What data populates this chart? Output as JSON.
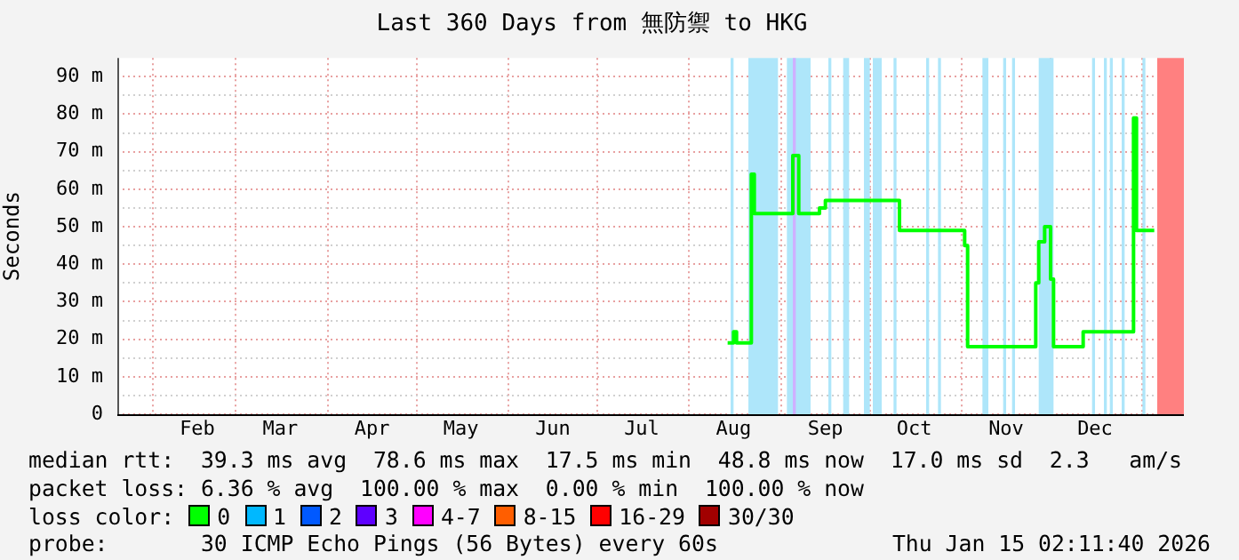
{
  "chart_data": {
    "type": "step",
    "title": "Last 360 Days from 無防禦 to HKG",
    "ylabel": "Seconds",
    "x": [
      "2025-08-14",
      "2025-08-16",
      "2025-08-17",
      "2025-08-22",
      "2025-08-23",
      "2025-09-05",
      "2025-09-07",
      "2025-09-14",
      "2025-09-16",
      "2025-10-11",
      "2025-11-02",
      "2025-11-03",
      "2025-11-26",
      "2025-11-27",
      "2025-11-29",
      "2025-12-01",
      "2025-12-02",
      "2025-12-12",
      "2025-12-29",
      "2025-12-30",
      "2026-01-05"
    ],
    "series": [
      {
        "color": "#00ff00",
        "values": [
          19,
          22,
          19,
          64,
          53.5,
          69,
          53.5,
          55,
          57,
          49,
          45,
          18,
          35,
          46,
          50,
          36,
          18,
          22,
          79,
          49,
          49
        ]
      }
    ],
    "xlim": [
      "2025-01-20",
      "2026-01-15"
    ],
    "xticks": [
      {
        "value": "2025-02-01",
        "label": null
      },
      {
        "value": "2025-02-16",
        "label": "Feb"
      },
      {
        "value": "2025-03-01",
        "label": null
      },
      {
        "value": "2025-03-16",
        "label": "Mar"
      },
      {
        "value": "2025-04-01",
        "label": null
      },
      {
        "value": "2025-04-16",
        "label": "Apr"
      },
      {
        "value": "2025-05-01",
        "label": null
      },
      {
        "value": "2025-05-16",
        "label": "May"
      },
      {
        "value": "2025-06-01",
        "label": null
      },
      {
        "value": "2025-06-16",
        "label": "Jun"
      },
      {
        "value": "2025-07-01",
        "label": null
      },
      {
        "value": "2025-07-16",
        "label": "Jul"
      },
      {
        "value": "2025-08-01",
        "label": null
      },
      {
        "value": "2025-08-16",
        "label": "Aug"
      },
      {
        "value": "2025-09-01",
        "label": null
      },
      {
        "value": "2025-09-16",
        "label": "Sep"
      },
      {
        "value": "2025-10-01",
        "label": null
      },
      {
        "value": "2025-10-16",
        "label": "Oct"
      },
      {
        "value": "2025-11-01",
        "label": null
      },
      {
        "value": "2025-11-16",
        "label": "Nov"
      },
      {
        "value": "2025-12-01",
        "label": null
      },
      {
        "value": "2025-12-16",
        "label": "Dec"
      },
      {
        "value": "2026-01-01",
        "label": null
      }
    ],
    "ylim": [
      0,
      95
    ],
    "yticks": [
      0,
      {
        "value": 5,
        "label": null
      },
      {
        "value": 10,
        "label": "10 m"
      },
      {
        "value": 15,
        "label": null
      },
      {
        "value": 20,
        "label": "20 m"
      },
      {
        "value": 25,
        "label": null
      },
      {
        "value": 30,
        "label": "30 m"
      },
      {
        "value": 35,
        "label": null
      },
      {
        "value": 40,
        "label": "40 m"
      },
      {
        "value": 45,
        "label": null
      },
      {
        "value": 50,
        "label": "50 m"
      },
      {
        "value": 55,
        "label": null
      },
      {
        "value": 60,
        "label": "60 m"
      },
      {
        "value": 65,
        "label": null
      },
      {
        "value": 70,
        "label": "70 m"
      },
      {
        "value": 75,
        "label": null
      },
      {
        "value": 80,
        "label": "80 m"
      },
      {
        "value": 85,
        "label": null
      },
      {
        "value": 90,
        "label": "90 m"
      }
    ],
    "grid": true,
    "marker": "none",
    "line_style": "solid",
    "bands": [
      {
        "axis": "x",
        "from": "2025-08-15",
        "to": "2025-08-16",
        "color": "#aee6fa"
      },
      {
        "axis": "x",
        "from": "2025-08-21",
        "to": "2025-08-31",
        "color": "#aee6fa"
      },
      {
        "axis": "x",
        "from": "2025-09-03",
        "to": "2025-09-11",
        "color": "#aee6fa"
      },
      {
        "axis": "x",
        "from": "2025-09-05",
        "to": "2025-09-06",
        "color": "#cfb0ff"
      },
      {
        "axis": "x",
        "from": "2025-09-17",
        "to": "2025-09-18",
        "color": "#aee6fa"
      },
      {
        "axis": "x",
        "from": "2025-09-22",
        "to": "2025-09-24",
        "color": "#aee6fa"
      },
      {
        "axis": "x",
        "from": "2025-09-29",
        "to": "2025-10-01",
        "color": "#aee6fa"
      },
      {
        "axis": "x",
        "from": "2025-10-02",
        "to": "2025-10-05",
        "color": "#aee6fa"
      },
      {
        "axis": "x",
        "from": "2025-10-09",
        "to": "2025-10-10",
        "color": "#aee6fa"
      },
      {
        "axis": "x",
        "from": "2025-10-20",
        "to": "2025-10-21",
        "color": "#aee6fa"
      },
      {
        "axis": "x",
        "from": "2025-10-24",
        "to": "2025-10-25",
        "color": "#aee6fa"
      },
      {
        "axis": "x",
        "from": "2025-11-08",
        "to": "2025-11-10",
        "color": "#aee6fa"
      },
      {
        "axis": "x",
        "from": "2025-11-15",
        "to": "2025-11-16",
        "color": "#aee6fa"
      },
      {
        "axis": "x",
        "from": "2025-11-18",
        "to": "2025-11-19",
        "color": "#aee6fa"
      },
      {
        "axis": "x",
        "from": "2025-11-27",
        "to": "2025-12-02",
        "color": "#aee6fa"
      },
      {
        "axis": "x",
        "from": "2025-12-15",
        "to": "2025-12-16",
        "color": "#aee6fa"
      },
      {
        "axis": "x",
        "from": "2025-12-19",
        "to": "2025-12-20",
        "color": "#aee6fa"
      },
      {
        "axis": "x",
        "from": "2025-12-21",
        "to": "2025-12-22",
        "color": "#aee6fa"
      },
      {
        "axis": "x",
        "from": "2025-12-25",
        "to": "2025-12-26",
        "color": "#aee6fa"
      },
      {
        "axis": "x",
        "from": "2026-01-01",
        "to": "2026-01-02",
        "color": "#aee6fa"
      },
      {
        "axis": "x",
        "from": "2026-01-06",
        "to": "2026-01-15",
        "color": "#ff8080"
      }
    ],
    "annotations": [
      "median rtt:  39.3 ms avg  78.6 ms max  17.5 ms min  48.8 ms now  17.0 ms sd  2.3   am/s",
      "packet loss: 6.36 % avg  100.00 % max  0.00 % min  100.00 % now",
      "loss color:",
      "0",
      "1",
      "2",
      "3",
      "4-7",
      "8-15",
      "16-29",
      "30/30",
      "probe:       30 ICMP Echo Pings (56 Bytes) every 60s",
      "Thu Jan 15 02:11:40 2026"
    ]
  }
}
